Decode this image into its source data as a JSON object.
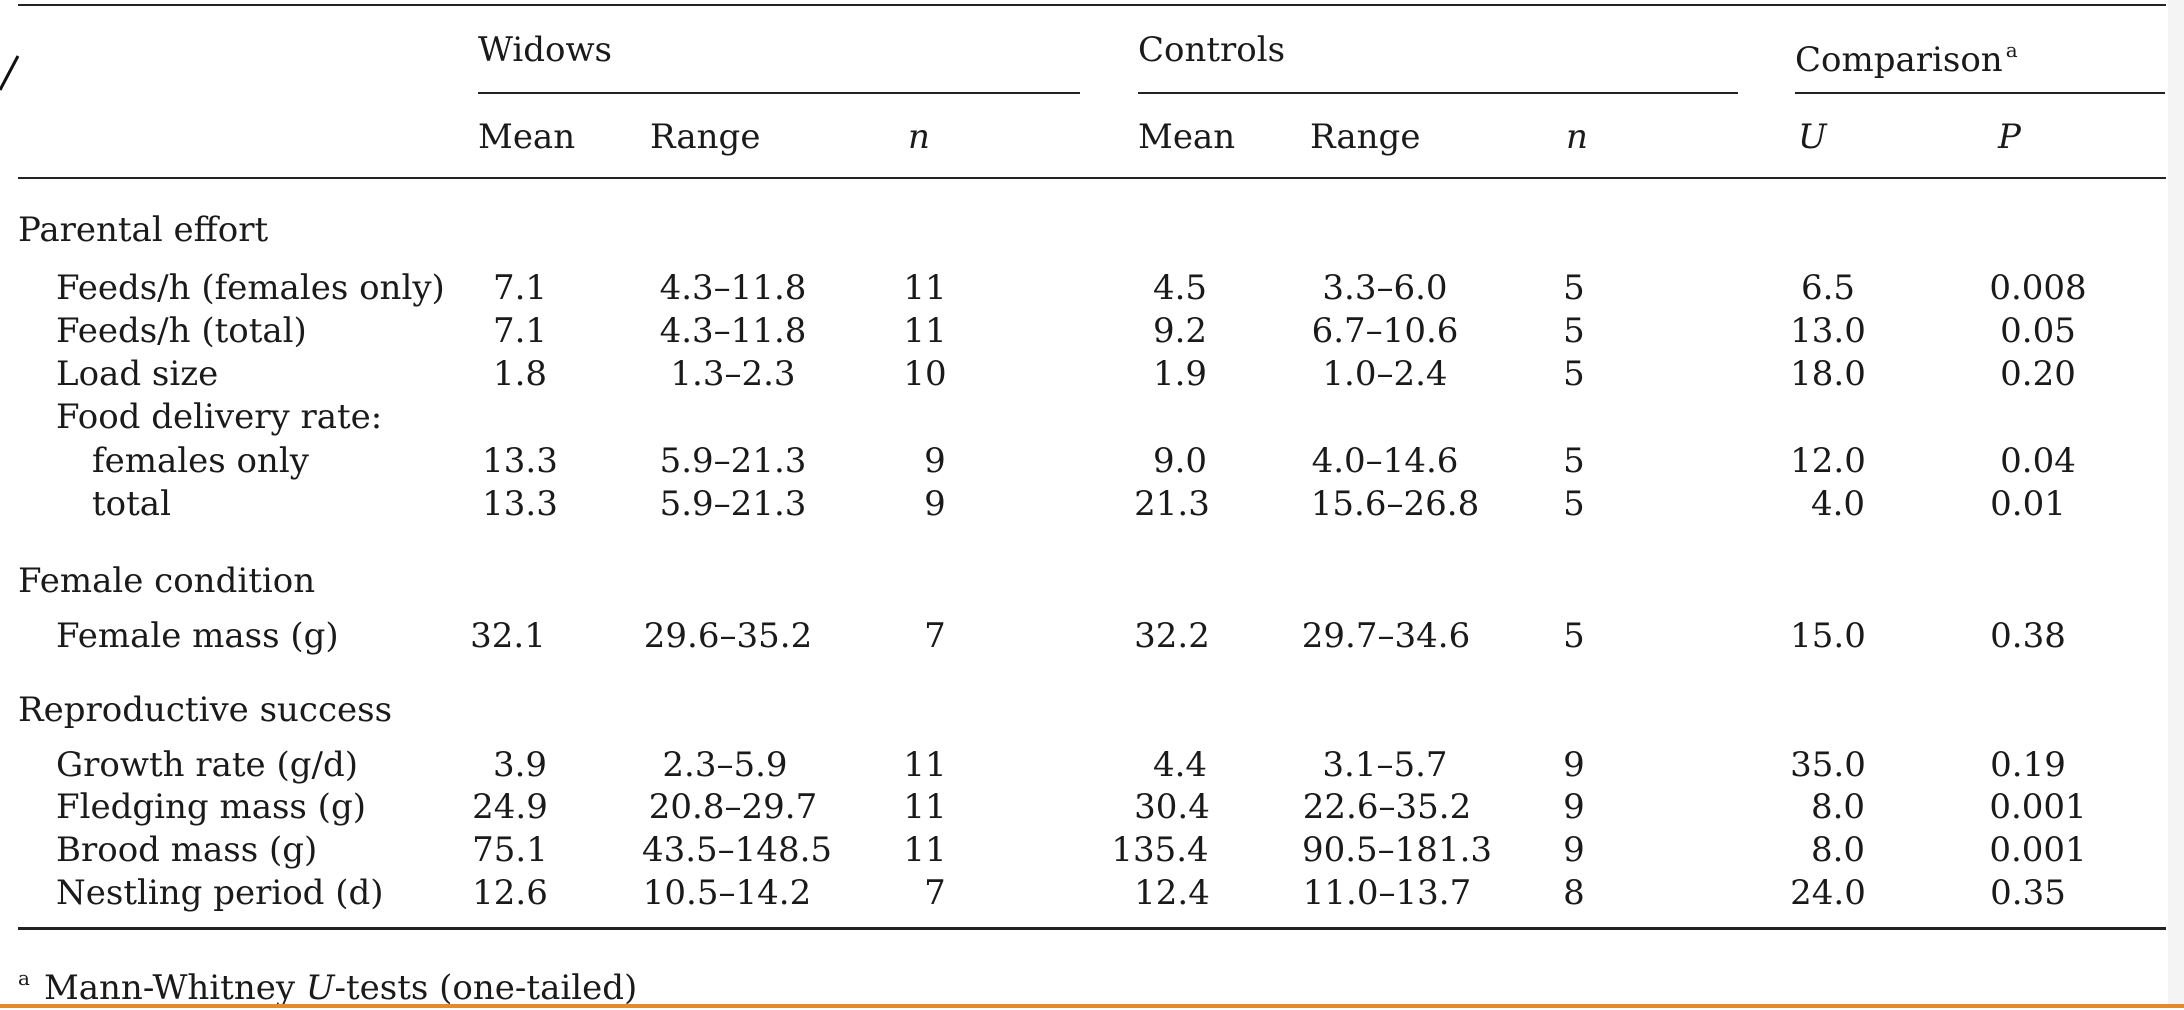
{
  "header": {
    "groups": [
      "Widows",
      "Controls",
      "Comparison"
    ],
    "comparison_footnote_mark": "a",
    "subheaders": [
      "Mean",
      "Range",
      "n",
      "Mean",
      "Range",
      "n",
      "U",
      "P"
    ]
  },
  "sections": [
    {
      "title": "Parental effort",
      "rows": [
        {
          "label": "Feeds/h (females only)",
          "indent": 1,
          "w_mean": "7.1",
          "w_range": "4.3–11.8",
          "w_n": "11",
          "c_mean": "4.5",
          "c_range": "3.3–6.0",
          "c_n": "5",
          "u": "6.5",
          "p": "0.008"
        },
        {
          "label": "Feeds/h (total)",
          "indent": 1,
          "w_mean": "7.1",
          "w_range": "4.3–11.8",
          "w_n": "11",
          "c_mean": "9.2",
          "c_range": "6.7–10.6",
          "c_n": "5",
          "u": "13.0",
          "p": "0.05"
        },
        {
          "label": "Load size",
          "indent": 1,
          "w_mean": "1.8",
          "w_range": "1.3–2.3",
          "w_n": "10",
          "c_mean": "1.9",
          "c_range": "1.0–2.4",
          "c_n": "5",
          "u": "18.0",
          "p": "0.20"
        },
        {
          "label": "Food delivery rate:",
          "indent": 1,
          "w_mean": "",
          "w_range": "",
          "w_n": "",
          "c_mean": "",
          "c_range": "",
          "c_n": "",
          "u": "",
          "p": ""
        },
        {
          "label": "females only",
          "indent": 2,
          "w_mean": "13.3",
          "w_range": "5.9–21.3",
          "w_n": "9",
          "c_mean": "9.0",
          "c_range": "4.0–14.6",
          "c_n": "5",
          "u": "12.0",
          "p": "0.04"
        },
        {
          "label": "total",
          "indent": 2,
          "w_mean": "13.3",
          "w_range": "5.9–21.3",
          "w_n": "9",
          "c_mean": "21.3",
          "c_range": "15.6–26.8",
          "c_n": "5",
          "u": "4.0",
          "p": "0.01"
        }
      ]
    },
    {
      "title": "Female condition",
      "rows": [
        {
          "label": "Female mass (g)",
          "indent": 1,
          "w_mean": "32.1",
          "w_range": "29.6–35.2",
          "w_n": "7",
          "c_mean": "32.2",
          "c_range": "29.7–34.6",
          "c_n": "5",
          "u": "15.0",
          "p": "0.38"
        }
      ]
    },
    {
      "title": "Reproductive success",
      "rows": [
        {
          "label": "Growth rate (g/d)",
          "indent": 1,
          "w_mean": "3.9",
          "w_range": "2.3–5.9",
          "w_n": "11",
          "c_mean": "4.4",
          "c_range": "3.1–5.7",
          "c_n": "9",
          "u": "35.0",
          "p": "0.19"
        },
        {
          "label": "Fledging mass (g)",
          "indent": 1,
          "w_mean": "24.9",
          "w_range": "20.8–29.7",
          "w_n": "11",
          "c_mean": "30.4",
          "c_range": "22.6–35.2",
          "c_n": "9",
          "u": "8.0",
          "p": "0.001"
        },
        {
          "label": "Brood mass (g)",
          "indent": 1,
          "w_mean": "75.1",
          "w_range": "43.5–148.5",
          "w_n": "11",
          "c_mean": "135.4",
          "c_range": "90.5–181.3",
          "c_n": "9",
          "u": "8.0",
          "p": "0.001"
        },
        {
          "label": "Nestling period (d)",
          "indent": 1,
          "w_mean": "12.6",
          "w_range": "10.5–14.2",
          "w_n": "7",
          "c_mean": "12.4",
          "c_range": "11.0–13.7",
          "c_n": "8",
          "u": "24.0",
          "p": "0.35"
        }
      ]
    }
  ],
  "footnote": {
    "mark": "a",
    "text_before": "Mann-Whitney ",
    "text_italic": "U",
    "text_after": "-tests (one-tailed)"
  }
}
